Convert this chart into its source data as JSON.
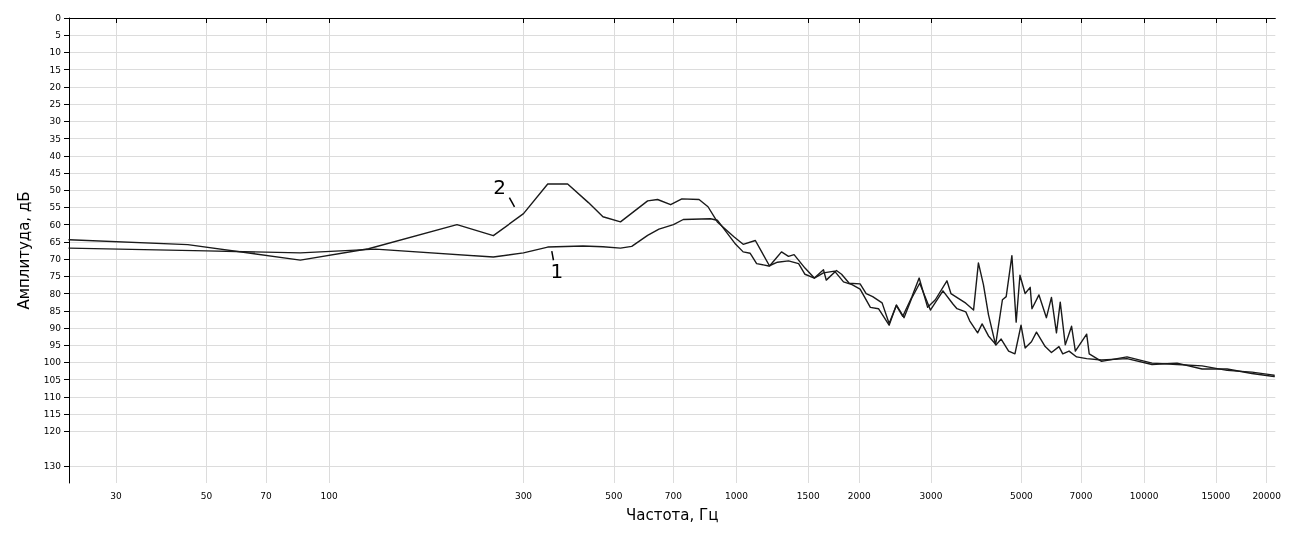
{
  "chart_data": {
    "type": "line",
    "xlabel": "Частота, Гц",
    "ylabel": "Амплитуда, дБ",
    "log": "x",
    "xlim": [
      23,
      21000
    ],
    "xticks": [
      30,
      50,
      70,
      100,
      300,
      500,
      700,
      1000,
      1500,
      2000,
      3000,
      5000,
      7000,
      10000,
      15000,
      20000
    ],
    "ylim": [
      135,
      0
    ],
    "yticks": [
      0,
      5,
      10,
      15,
      20,
      25,
      30,
      35,
      40,
      45,
      50,
      55,
      60,
      65,
      70,
      75,
      80,
      85,
      90,
      95,
      100,
      105,
      110,
      115,
      120,
      130
    ],
    "grid": true,
    "marker": "none",
    "line_style": "solid",
    "annotations": [
      {
        "text": "1",
        "x": 350,
        "y": 66.5
      },
      {
        "text": "2",
        "x": 290,
        "y": 56
      }
    ],
    "series": [
      {
        "color": "#1a1a1a",
        "x": [
          23,
          50,
          85,
          130,
          253,
          300,
          344,
          420,
          470,
          519,
          553,
          605,
          645,
          700,
          740,
          863,
          897,
          995,
          1038,
          1080,
          1120,
          1200,
          1260,
          1341,
          1420,
          1472,
          1552,
          1634,
          1740,
          1830,
          1920,
          2010,
          2130,
          2230,
          2368,
          2467,
          2576,
          2692,
          2815,
          2990,
          3210,
          3400,
          3475,
          3652,
          3733,
          3905,
          4005,
          4151,
          4335,
          4460,
          4652,
          4821,
          4990,
          5107,
          5293,
          5445,
          5720,
          5926,
          6183,
          6317,
          6546,
          6832,
          7231,
          7866,
          9082,
          10462,
          12050,
          13880,
          15990,
          18400,
          20860
        ],
        "values": [
          66.8,
          67.6,
          68.2,
          67.1,
          69.4,
          68.2,
          66.5,
          66.2,
          66.4,
          66.8,
          66.3,
          63.1,
          61.3,
          60,
          58.5,
          58.3,
          58.7,
          65.7,
          67.9,
          68.3,
          71.3,
          72,
          70.9,
          70.5,
          71.3,
          74.4,
          75.5,
          74,
          73.5,
          76.6,
          77.4,
          78.7,
          84,
          84.4,
          89.2,
          83.3,
          87,
          81.3,
          77,
          84.8,
          79.2,
          83.1,
          84.4,
          85.3,
          87.9,
          91.4,
          88.8,
          92.3,
          94.9,
          93.2,
          96.7,
          97.5,
          89.2,
          95.8,
          94,
          91.2,
          95.4,
          97.1,
          95.4,
          97.5,
          96.7,
          98.4,
          98.9,
          99.3,
          98.9,
          100.6,
          100.2,
          101.9,
          101.9,
          103.2,
          104.1
        ]
      },
      {
        "color": "#1a1a1a",
        "x": [
          23,
          45,
          85,
          125,
          206,
          253,
          300,
          344,
          385,
          433,
          470,
          519,
          605,
          640,
          689,
          734,
          809,
          851,
          897,
          985,
          1038,
          1112,
          1205,
          1289,
          1341,
          1384,
          1472,
          1552,
          1634,
          1660,
          1758,
          1810,
          1890,
          2010,
          2080,
          2158,
          2276,
          2368,
          2467,
          2558,
          2692,
          2806,
          2944,
          3075,
          3283,
          3358,
          3652,
          3816,
          3922,
          4035,
          4151,
          4322,
          4492,
          4589,
          4739,
          4855,
          4960,
          5107,
          5255,
          5308,
          5522,
          5760,
          5926,
          6096,
          6228,
          6408,
          6640,
          6783,
          7231,
          7336,
          7866,
          9082,
          10462,
          12050,
          13880,
          15990,
          18400,
          20860
        ],
        "values": [
          64.4,
          65.8,
          70.3,
          67,
          60,
          63.2,
          56.8,
          48.2,
          48.2,
          53.6,
          57.7,
          59.2,
          53.1,
          52.7,
          54.2,
          52.5,
          52.7,
          54.8,
          59.2,
          63.5,
          65.7,
          64.6,
          72,
          67.9,
          69.2,
          68.7,
          72.6,
          75.5,
          73.1,
          76.1,
          73.3,
          74.4,
          77,
          77.2,
          80,
          80.9,
          82.7,
          88.7,
          83.5,
          86.6,
          81,
          75.5,
          84,
          81.8,
          76.3,
          80,
          82.8,
          84.8,
          71.1,
          77.4,
          86.1,
          94.9,
          81.8,
          80.9,
          69,
          88.3,
          74.7,
          80,
          78.2,
          84.4,
          80.4,
          87,
          81.1,
          91.4,
          82.5,
          94.9,
          89.5,
          96.7,
          91.8,
          97.5,
          99.7,
          98.4,
          100.2,
          100.6,
          101,
          102.3,
          102.8,
          103.7
        ]
      }
    ]
  }
}
